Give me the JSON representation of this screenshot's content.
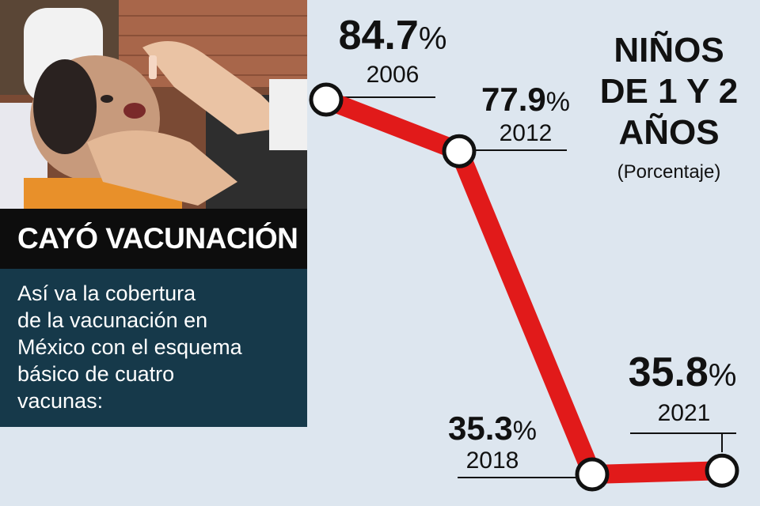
{
  "headline": "CAYÓ VACUNACIÓN",
  "description_lines": [
    "Así va la cobertura",
    "de la vacunación en",
    "México con el esquema",
    "básico de cuatro",
    "vacunas:"
  ],
  "chart_data": {
    "type": "line",
    "title_lines": [
      "NIÑOS",
      "DE 1 Y 2",
      "AÑOS"
    ],
    "subtitle": "(Porcentaje)",
    "unit": "%",
    "x": [
      "2006",
      "2012",
      "2018",
      "2021"
    ],
    "values": [
      84.7,
      77.9,
      35.3,
      35.8
    ],
    "value_labels": [
      "84.7",
      "77.9",
      "35.3",
      "35.8"
    ],
    "line_color": "#e11a1a",
    "marker_color": "#ffffff",
    "grid": false
  },
  "colors": {
    "background": "#dde6ef",
    "headline_bg": "#0d0d0d",
    "description_bg": "#16394a"
  },
  "photo": {
    "icon": "vaccination-photo-icon"
  }
}
